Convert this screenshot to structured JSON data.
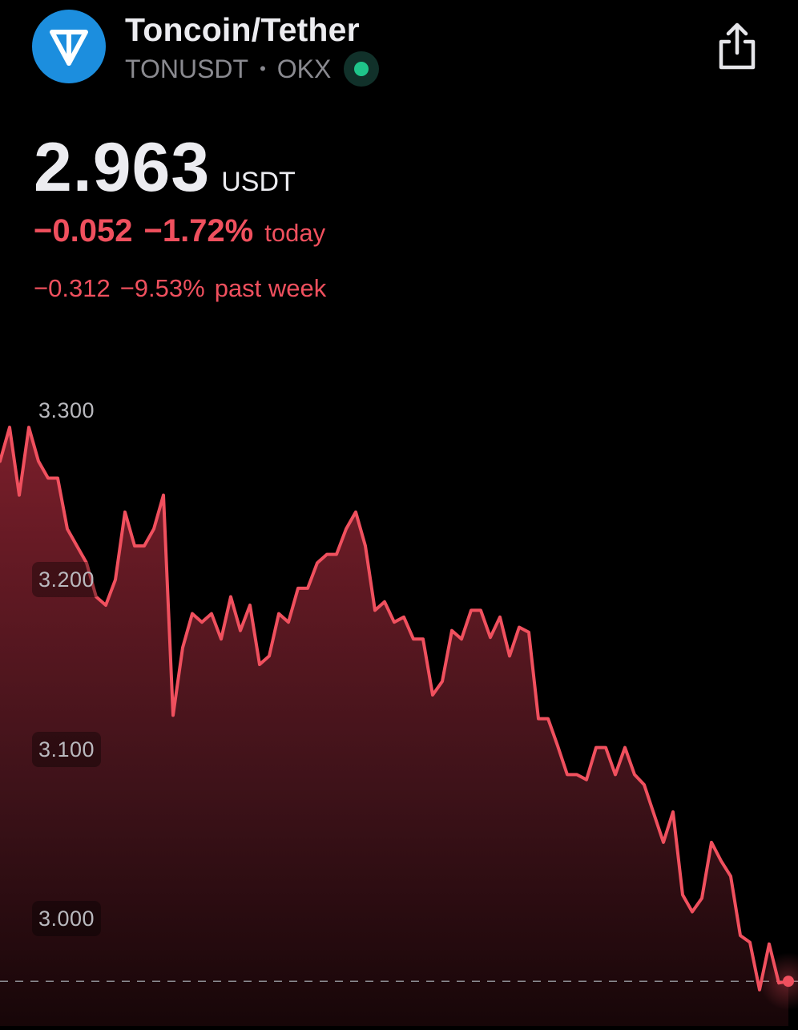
{
  "header": {
    "title": "Toncoin/Tether",
    "symbol": "TONUSDT",
    "separator": "•",
    "exchange": "OKX",
    "logo_icon": "ton-logo-icon",
    "share_icon": "share-icon"
  },
  "quote": {
    "price": "2.963",
    "currency": "USDT",
    "today_change": "−0.052",
    "today_percent": "−1.72%",
    "today_label": "today",
    "week_change": "−0.312",
    "week_percent": "−9.53%",
    "week_label": "past week"
  },
  "colors": {
    "negative": "#f0505e",
    "logo": "#1c8ede",
    "live": "#1fc48a"
  },
  "chart_data": {
    "type": "area",
    "ylim": [
      2.95,
      3.3
    ],
    "y_ticks": [
      "3.300",
      "3.200",
      "3.100",
      "3.000"
    ],
    "reference_line": 2.963,
    "values": [
      3.27,
      3.29,
      3.25,
      3.29,
      3.27,
      3.26,
      3.26,
      3.23,
      3.22,
      3.21,
      3.19,
      3.185,
      3.2,
      3.24,
      3.22,
      3.22,
      3.23,
      3.25,
      3.12,
      3.16,
      3.18,
      3.175,
      3.18,
      3.165,
      3.19,
      3.17,
      3.185,
      3.15,
      3.155,
      3.18,
      3.175,
      3.195,
      3.195,
      3.21,
      3.215,
      3.215,
      3.23,
      3.24,
      3.22,
      3.182,
      3.187,
      3.175,
      3.178,
      3.165,
      3.165,
      3.132,
      3.14,
      3.17,
      3.165,
      3.182,
      3.182,
      3.166,
      3.178,
      3.155,
      3.172,
      3.169,
      3.118,
      3.118,
      3.102,
      3.085,
      3.085,
      3.082,
      3.101,
      3.101,
      3.085,
      3.101,
      3.085,
      3.079,
      3.062,
      3.045,
      3.063,
      3.014,
      3.004,
      3.012,
      3.045,
      3.034,
      3.025,
      2.99,
      2.986,
      2.958,
      2.985,
      2.962,
      2.963
    ]
  }
}
